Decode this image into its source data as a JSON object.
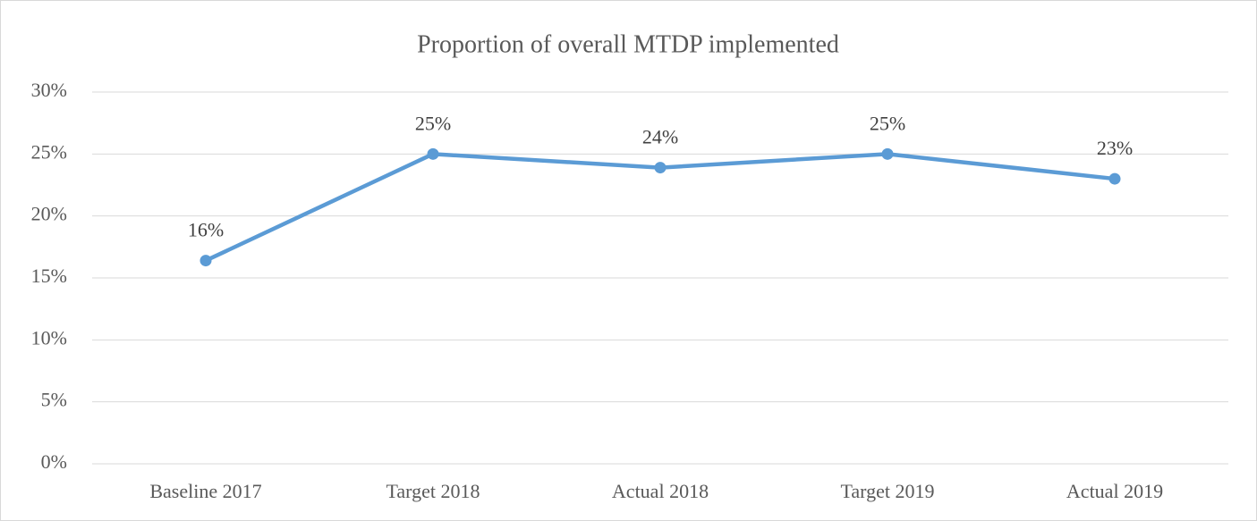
{
  "chart_data": {
    "type": "line",
    "title": "Proportion of overall MTDP implemented",
    "categories": [
      "Baseline 2017",
      "Target 2018",
      "Actual 2018",
      "Target 2019",
      "Actual 2019"
    ],
    "series": [
      {
        "name": "Proportion of overall MTDP implemented",
        "color": "#5b9bd5",
        "values": [
          16.4,
          25,
          23.9,
          25,
          23
        ],
        "value_labels": [
          "16%",
          "25%",
          "24%",
          "25%",
          "23%"
        ]
      }
    ],
    "ylim": [
      0,
      30
    ],
    "yticks": [
      {
        "value": 0,
        "label": "0%"
      },
      {
        "value": 5,
        "label": "5%"
      },
      {
        "value": 10,
        "label": "10%"
      },
      {
        "value": 15,
        "label": "15%"
      },
      {
        "value": 20,
        "label": "20%"
      },
      {
        "value": 25,
        "label": "25%"
      },
      {
        "value": 30,
        "label": "30%"
      }
    ],
    "grid": true
  }
}
